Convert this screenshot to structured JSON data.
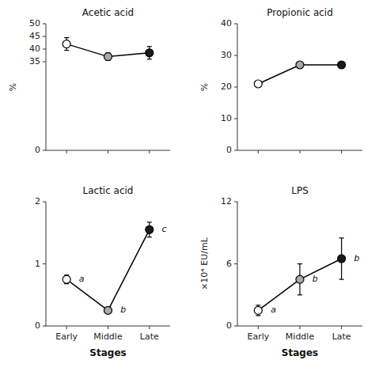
{
  "chart_data": [
    {
      "type": "line",
      "title": "Acetic acid",
      "ylabel": "%",
      "categories": [
        null,
        null,
        null
      ],
      "values": [
        42.0,
        37.0,
        38.5
      ],
      "errors": [
        2.5,
        1.5,
        2.5
      ],
      "ylim": [
        0,
        50
      ],
      "yticks": [
        0,
        35,
        40,
        45,
        50
      ],
      "color": "black",
      "colors": [
        "white",
        "#aaaaaa",
        "#1a1a1a"
      ],
      "marker": "circle"
    },
    {
      "type": "line",
      "title": "Propionic acid",
      "ylabel": "%",
      "categories": [
        null,
        null,
        null
      ],
      "values": [
        21.0,
        27.0,
        27.0
      ],
      "errors": [
        0.8,
        1.0,
        0.8
      ],
      "ylim": [
        0,
        40
      ],
      "yticks": [
        0,
        10,
        20,
        30,
        40
      ],
      "color": "black",
      "colors": [
        "white",
        "#aaaaaa",
        "#1a1a1a"
      ],
      "marker": "circle"
    },
    {
      "type": "line",
      "title": "Lactic acid",
      "xlabel": "Stages",
      "categories": [
        "Early",
        "Middle",
        "Late"
      ],
      "values": [
        0.75,
        0.25,
        1.55
      ],
      "errors": [
        0.07,
        0.05,
        0.12
      ],
      "annotations": [
        "a",
        "b",
        "c"
      ],
      "ylim": [
        0,
        2
      ],
      "yticks": [
        0,
        1,
        2
      ],
      "color": "black",
      "colors": [
        "white",
        "#aaaaaa",
        "#1a1a1a"
      ],
      "marker": "circle"
    },
    {
      "type": "line",
      "title": "LPS",
      "ylabel": "×10⁴ EU/mL",
      "xlabel": "Stages",
      "categories": [
        "Early",
        "Middle",
        "Late"
      ],
      "values": [
        1.5,
        4.5,
        6.5
      ],
      "errors": [
        0.5,
        1.5,
        2.0
      ],
      "annotations": [
        "a",
        "b",
        "b"
      ],
      "ylim": [
        0,
        12
      ],
      "yticks": [
        0,
        6,
        12
      ],
      "color": "black",
      "colors": [
        "white",
        "#aaaaaa",
        "#1a1a1a"
      ],
      "marker": "circle"
    }
  ]
}
